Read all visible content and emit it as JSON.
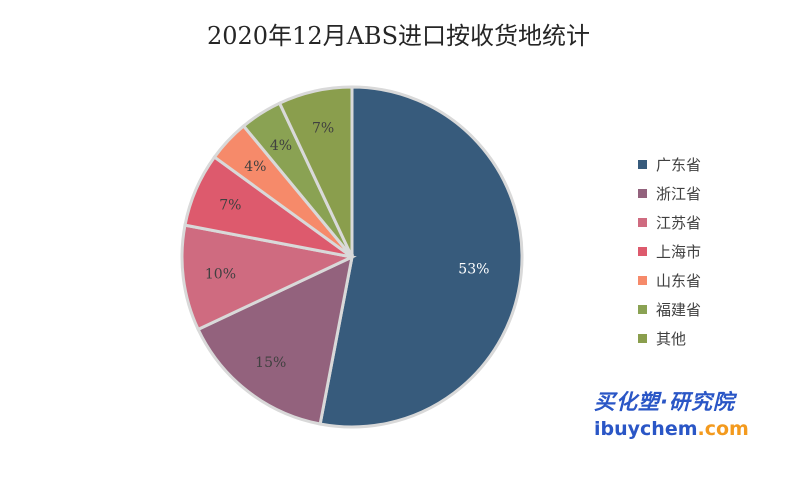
{
  "chart_data": {
    "type": "pie",
    "title": "2020年12月ABS进口按收货地统计",
    "categories": [
      "广东省",
      "浙江省",
      "江苏省",
      "上海市",
      "山东省",
      "福建省",
      "其他"
    ],
    "values": [
      53,
      15,
      10,
      7,
      4,
      4,
      7
    ],
    "data_labels": [
      "53%",
      "15%",
      "10%",
      "7%",
      "4%",
      "4%",
      "7%"
    ],
    "colors": [
      "#375B7C",
      "#93627D",
      "#CF6B80",
      "#DD5A6D",
      "#F68A6A",
      "#8AA253",
      "#8A9E4D"
    ],
    "legend_position": "right"
  },
  "watermark": {
    "cn_text": "买化塑·研究院",
    "url_part1": "ibuychem",
    "url_part2": ".com"
  }
}
